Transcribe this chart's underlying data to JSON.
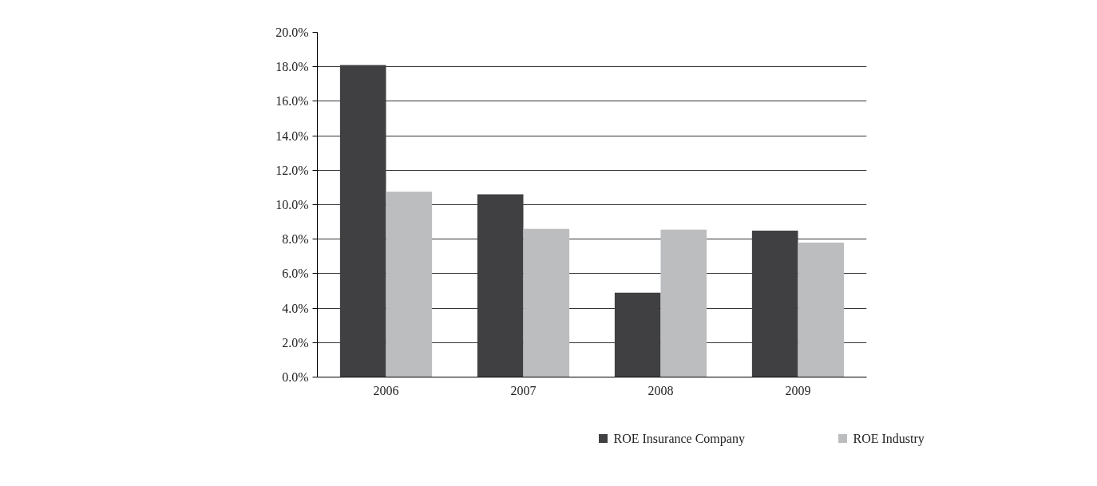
{
  "chart_data": {
    "type": "bar",
    "categories": [
      "2006",
      "2007",
      "2008",
      "2009"
    ],
    "series": [
      {
        "name": "ROE Insurance Company",
        "color": "#404042",
        "values": [
          18.1,
          10.6,
          4.9,
          8.5
        ]
      },
      {
        "name": "ROE Industry",
        "color": "#bcbdbf",
        "values": [
          10.75,
          8.6,
          8.55,
          7.8
        ]
      }
    ],
    "ylim": [
      0,
      20
    ],
    "yticks": [
      {
        "value": 0,
        "label": "0.0%"
      },
      {
        "value": 2,
        "label": "2.0%"
      },
      {
        "value": 4,
        "label": "4.0%"
      },
      {
        "value": 6,
        "label": "6.0%"
      },
      {
        "value": 8,
        "label": "8.0%"
      },
      {
        "value": 10,
        "label": "10.0%"
      },
      {
        "value": 12,
        "label": "12.0%"
      },
      {
        "value": 14,
        "label": "14.0%"
      },
      {
        "value": 16,
        "label": "16.0%"
      },
      {
        "value": 18,
        "label": "18.0%"
      },
      {
        "value": 20,
        "label": "20.0%"
      }
    ],
    "grid": "y",
    "legend": "bottom"
  }
}
